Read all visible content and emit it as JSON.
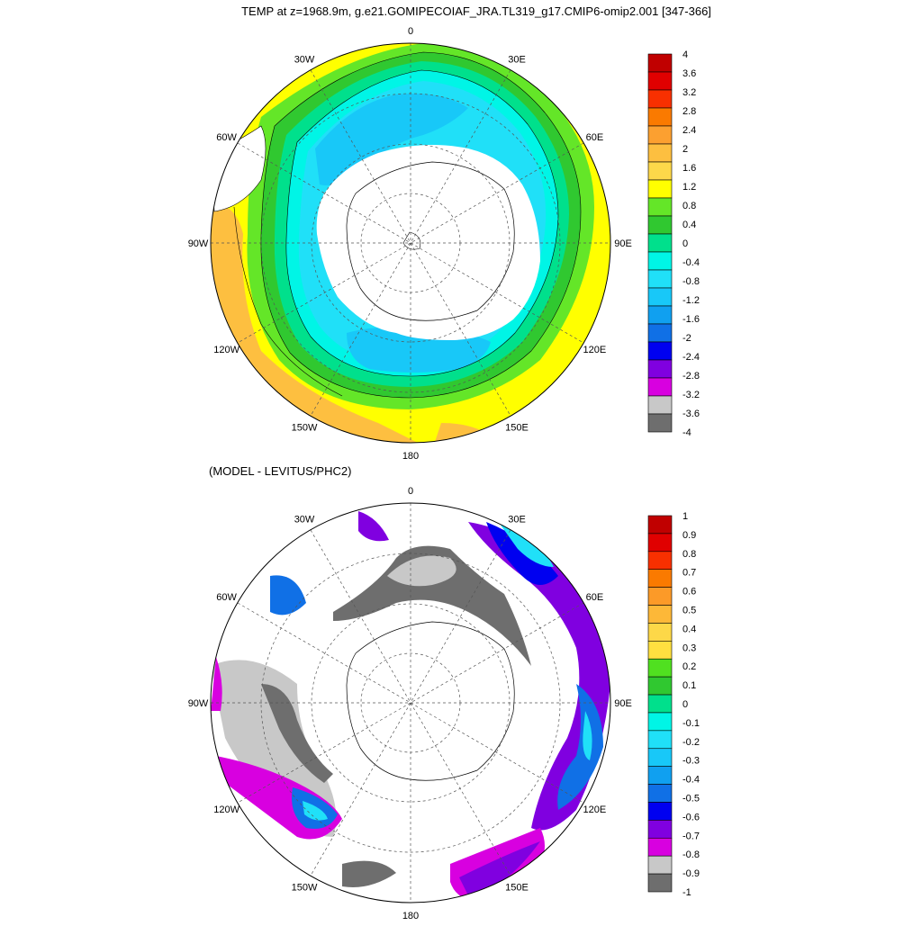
{
  "title": "TEMP at z=1968.9m, g.e21.GOMIPECOIAF_JRA.TL319_g17.CMIP6-omip2.001 [347-366]",
  "subtitle": "(MODEL - LEVITUS/PHC2)",
  "longitude_labels": [
    "0",
    "30E",
    "60E",
    "90E",
    "120E",
    "150E",
    "180",
    "150W",
    "120W",
    "90W",
    "60W",
    "30W"
  ],
  "top_colorbar": {
    "labels": [
      "4",
      "3.6",
      "3.2",
      "2.8",
      "2.4",
      "2",
      "1.6",
      "1.2",
      "0.8",
      "0.4",
      "0",
      "-0.4",
      "-0.8",
      "-1.2",
      "-1.6",
      "-2",
      "-2.4",
      "-2.8",
      "-3.2",
      "-3.6",
      "-4"
    ],
    "colors": [
      "#c00000",
      "#e00000",
      "#f83000",
      "#fa7a00",
      "#fca030",
      "#fdbf40",
      "#fdd84a",
      "#ffff00",
      "#64e628",
      "#30c830",
      "#00e08c",
      "#00f5e6",
      "#20e0f8",
      "#18c8f8",
      "#10a0f0",
      "#1070e6",
      "#0000f0",
      "#8000e0",
      "#d800e0",
      "#c8c8c8",
      "#6e6e6e"
    ]
  },
  "bottom_colorbar": {
    "labels": [
      "1",
      "0.9",
      "0.8",
      "0.7",
      "0.6",
      "0.5",
      "0.4",
      "0.3",
      "0.2",
      "0.1",
      "0",
      "-0.1",
      "-0.2",
      "-0.3",
      "-0.4",
      "-0.5",
      "-0.6",
      "-0.7",
      "-0.8",
      "-0.9",
      "-1"
    ],
    "colors": [
      "#c00000",
      "#e00000",
      "#f83000",
      "#fa7a00",
      "#fc9a28",
      "#fdb838",
      "#fdd848",
      "#ffe040",
      "#50e020",
      "#30c830",
      "#00e08c",
      "#00f5e6",
      "#20e0f8",
      "#18c8f8",
      "#10a0f0",
      "#1070e6",
      "#0000f0",
      "#8000e0",
      "#d800e0",
      "#c8c8c8",
      "#6e6e6e"
    ]
  }
}
